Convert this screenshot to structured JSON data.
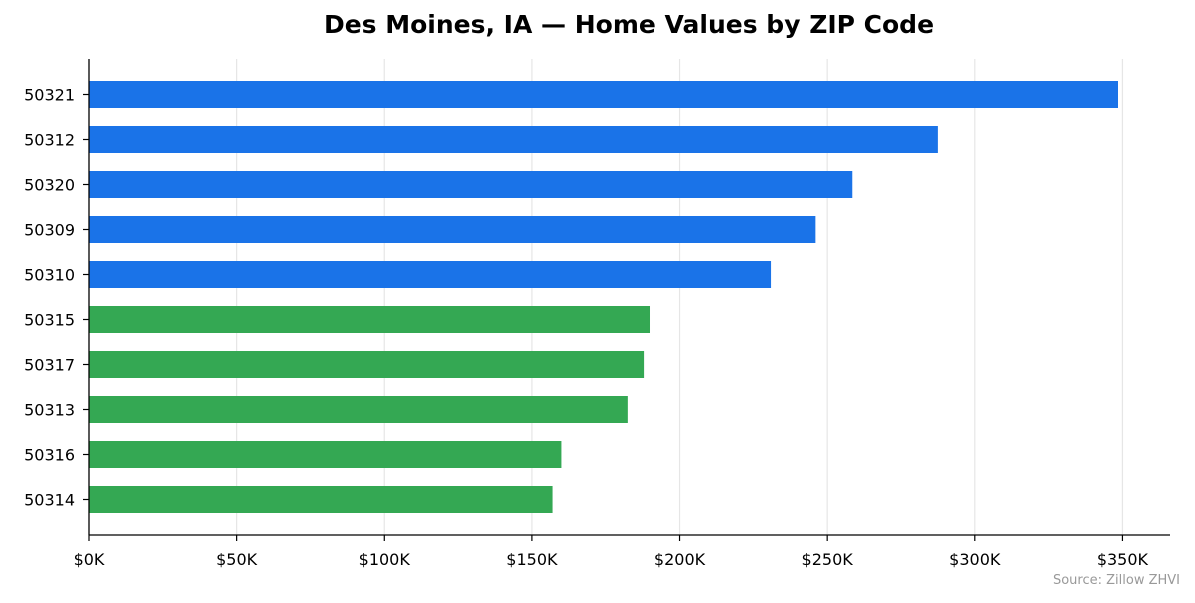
{
  "chart_data": {
    "type": "bar",
    "orientation": "horizontal",
    "title": "Des Moines, IA — Home Values by ZIP Code",
    "xlabel": "",
    "ylabel": "",
    "categories": [
      "50321",
      "50312",
      "50320",
      "50309",
      "50310",
      "50315",
      "50317",
      "50313",
      "50316",
      "50314"
    ],
    "values": [
      348500,
      287500,
      258500,
      246000,
      231000,
      190000,
      188000,
      182500,
      160000,
      157000
    ],
    "bar_colors": [
      "#1a73e8",
      "#1a73e8",
      "#1a73e8",
      "#1a73e8",
      "#1a73e8",
      "#34a853",
      "#34a853",
      "#34a853",
      "#34a853",
      "#34a853"
    ],
    "xlim": [
      0,
      366000
    ],
    "xticks": [
      0,
      50000,
      100000,
      150000,
      200000,
      250000,
      300000,
      350000
    ],
    "xtick_labels": [
      "$0K",
      "$50K",
      "$100K",
      "$150K",
      "$200K",
      "$250K",
      "$300K",
      "$350K"
    ],
    "grid": "vertical",
    "legend": "none"
  },
  "source_note": "Source: Zillow ZHVI"
}
